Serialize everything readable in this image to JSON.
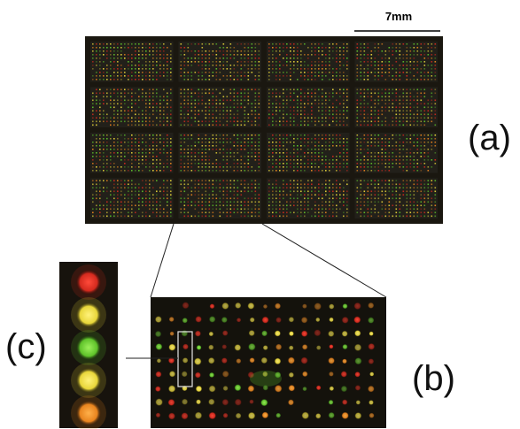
{
  "figure": {
    "scale_bar_label": "7mm",
    "panel_a_label": "(a)",
    "panel_b_label": "(b)",
    "panel_c_label": "(c)"
  },
  "colors": {
    "background": "#ffffff",
    "array_background": "#1a1710",
    "spot_red": "#d42a1e",
    "spot_yellow": "#e8d63a",
    "spot_green": "#5fc22a",
    "spot_orange": "#e8841e",
    "outline": "#000000"
  },
  "microarray": {
    "block_rows": 4,
    "block_cols": 4
  },
  "color_scale": [
    "red",
    "yellow",
    "green",
    "yellow",
    "orange"
  ]
}
